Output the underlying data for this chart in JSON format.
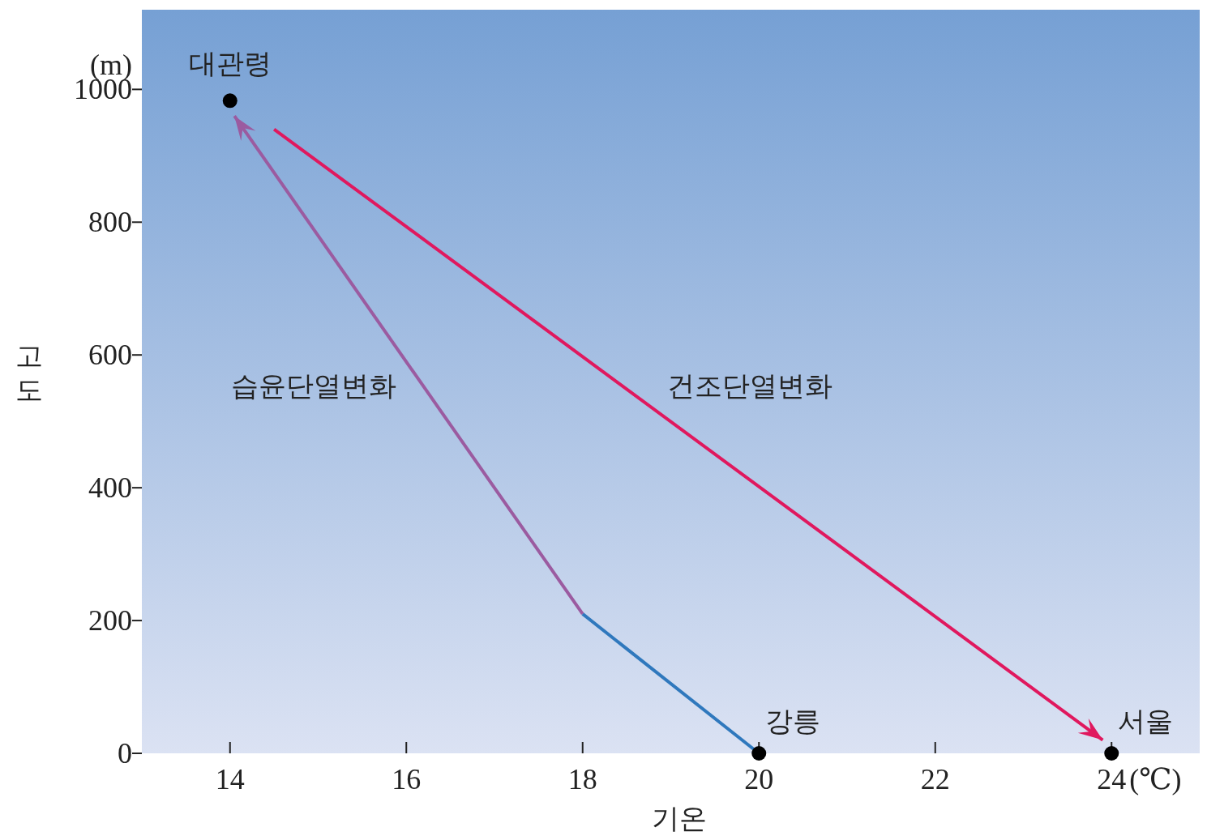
{
  "chart_data": {
    "type": "line",
    "xlabel": "기온",
    "ylabel": "고도",
    "xlim": [
      13,
      25
    ],
    "ylim": [
      0,
      1120
    ],
    "xticks": [
      14,
      16,
      18,
      20,
      22,
      24
    ],
    "yticks": [
      0,
      200,
      400,
      600,
      800,
      1000
    ],
    "grid": false,
    "series": [
      {
        "color": "#2f78bd",
        "x": [
          20,
          18
        ],
        "values": [
          0,
          210
        ]
      },
      {
        "color": "#9b5ba0",
        "x": [
          18,
          14.05
        ],
        "values": [
          210,
          960
        ]
      },
      {
        "color": "#e0185e",
        "x": [
          14.5,
          23.9
        ],
        "values": [
          940,
          20
        ]
      },
      {
        "type": "scatter",
        "color": "#000000",
        "marker": "circle",
        "x": [
          14,
          20,
          24
        ],
        "values": [
          983,
          0,
          0
        ]
      }
    ],
    "annotations": [
      "(m)",
      "(℃)",
      {
        "text": "대관령",
        "x": 14,
        "y": 983
      },
      {
        "text": "강릉",
        "x": 20,
        "y": 0
      },
      {
        "text": "서울",
        "x": 24,
        "y": 0
      },
      "습윤단열변화",
      "건조단열변화"
    ]
  }
}
